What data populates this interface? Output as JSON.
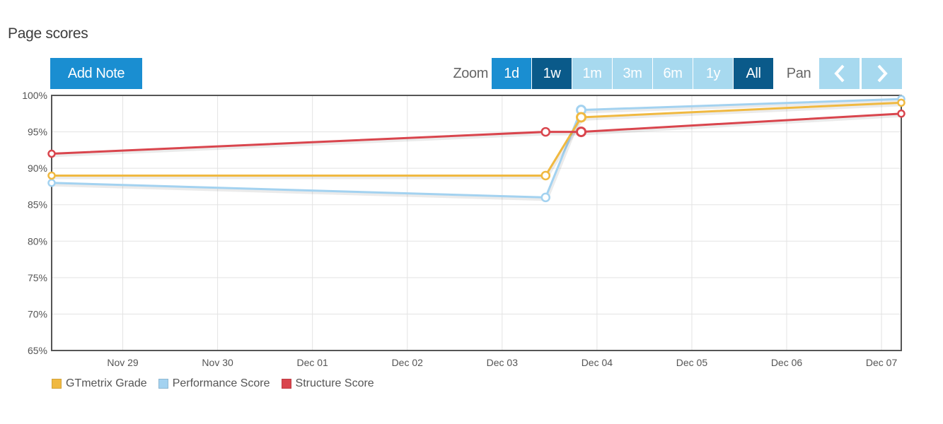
{
  "header": {
    "title": "Page scores"
  },
  "toolbar": {
    "add_note_label": "Add Note",
    "zoom_label": "Zoom",
    "zoom_options": [
      {
        "label": "1d",
        "state": "enabled"
      },
      {
        "label": "1w",
        "state": "active"
      },
      {
        "label": "1m",
        "state": "disabled"
      },
      {
        "label": "3m",
        "state": "disabled"
      },
      {
        "label": "6m",
        "state": "disabled"
      },
      {
        "label": "1y",
        "state": "disabled"
      },
      {
        "label": "All",
        "state": "active"
      }
    ],
    "pan_label": "Pan",
    "pan_prev_icon": "chevron-left-icon",
    "pan_next_icon": "chevron-right-icon"
  },
  "colors": {
    "accent": "#1a8ed1",
    "active": "#0a5a8a",
    "disabled": "#a7d9ef",
    "gtmetrix": "#f0b941",
    "performance": "#a3d2f0",
    "structure": "#d9454d"
  },
  "chart_data": {
    "type": "line",
    "title": "",
    "xlabel": "",
    "ylabel": "",
    "ylim": [
      65,
      100
    ],
    "xlim": [
      "2014-11-28T06:00",
      "2014-12-07T05:00"
    ],
    "grid": true,
    "legend_position": "bottom-left",
    "y_ticks": [
      "65%",
      "70%",
      "75%",
      "80%",
      "85%",
      "90%",
      "95%",
      "100%"
    ],
    "x_ticks": [
      {
        "label": "Nov 29",
        "x": "2014-11-29"
      },
      {
        "label": "Nov 30",
        "x": "2014-11-30"
      },
      {
        "label": "Dec 01",
        "x": "2014-12-01"
      },
      {
        "label": "Dec 02",
        "x": "2014-12-02"
      },
      {
        "label": "Dec 03",
        "x": "2014-12-03"
      },
      {
        "label": "Dec 04",
        "x": "2014-12-04"
      },
      {
        "label": "Dec 05",
        "x": "2014-12-05"
      },
      {
        "label": "Dec 06",
        "x": "2014-12-06"
      },
      {
        "label": "Dec 07",
        "x": "2014-12-07"
      }
    ],
    "x": [
      "2014-11-28T06:00",
      "2014-12-03T11:00",
      "2014-12-03T20:00",
      "2014-12-07T05:00"
    ],
    "series": [
      {
        "name": "GTmetrix Grade",
        "color": "#f0b941",
        "values": [
          89,
          89,
          97,
          99
        ]
      },
      {
        "name": "Performance Score",
        "color": "#a3d2f0",
        "values": [
          88,
          86,
          98,
          99.5
        ]
      },
      {
        "name": "Structure Score",
        "color": "#d9454d",
        "values": [
          92,
          95,
          95,
          97.5
        ]
      }
    ]
  }
}
